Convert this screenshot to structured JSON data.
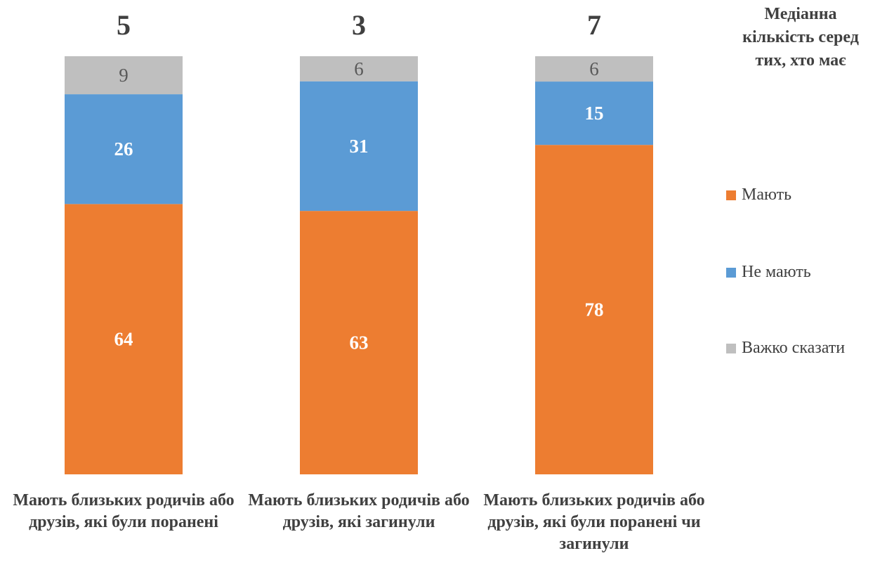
{
  "chart_data": {
    "type": "bar",
    "stacked": true,
    "normalized": true,
    "categories": [
      "Мають близьких родичів або друзів, які були поранені",
      "Мають близьких родичів або друзів, які загинули",
      "Мають близьких родичів або друзів, які були поранені чи загинули"
    ],
    "series": [
      {
        "name": "Мають",
        "color": "#ED7D31",
        "values": [
          64,
          63,
          78
        ]
      },
      {
        "name": "Не мають",
        "color": "#5B9BD5",
        "values": [
          26,
          31,
          15
        ]
      },
      {
        "name": "Важко сказати",
        "color": "#BFBFBF",
        "values": [
          9,
          6,
          6
        ]
      }
    ],
    "median_title": "Медіанна кількість серед тих, хто має",
    "medians": [
      "5",
      "3",
      "7"
    ],
    "legend_position": "right",
    "grid": false,
    "ylim": [
      0,
      100
    ]
  }
}
